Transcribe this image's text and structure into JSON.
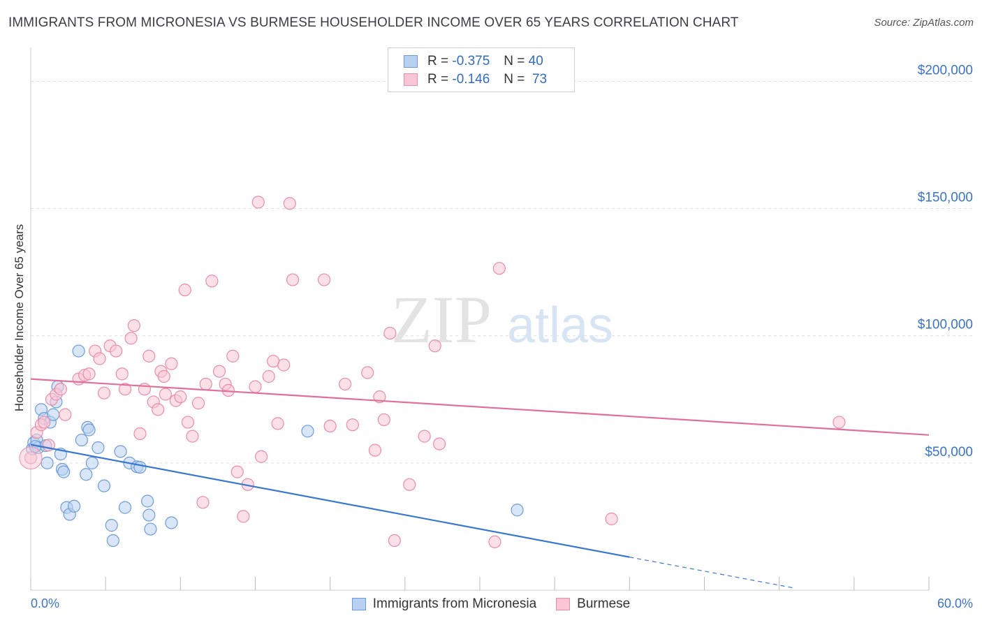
{
  "header": {
    "title": "IMMIGRANTS FROM MICRONESIA VS BURMESE HOUSEHOLDER INCOME OVER 65 YEARS CORRELATION CHART",
    "source": "Source: ZipAtlas.com"
  },
  "legend_top": {
    "rows": [
      {
        "r_label": "R =",
        "r_value": "-0.375",
        "n_label": "N =",
        "n_value": "40"
      },
      {
        "r_label": "R =",
        "r_value": "-0.146",
        "n_label": "N =",
        "n_value": "73"
      }
    ]
  },
  "legend_bottom": {
    "items": [
      {
        "label": "Immigrants from Micronesia"
      },
      {
        "label": "Burmese"
      }
    ]
  },
  "watermark": {
    "part1": "ZIP",
    "part2": "atlas"
  },
  "colors": {
    "blue_fill": "#b8d1f0",
    "blue_stroke": "#6e9bd8",
    "blue_line": "#3a78d0",
    "pink_fill": "#f9c6d6",
    "pink_stroke": "#e88ca8",
    "pink_line": "#e0709a",
    "tick_text": "#3a73c9",
    "grid": "#dddddd"
  },
  "chart_data": {
    "type": "scatter",
    "title": "IMMIGRANTS FROM MICRONESIA VS BURMESE HOUSEHOLDER INCOME OVER 65 YEARS CORRELATION CHART",
    "xlabel": "",
    "ylabel": "Householder Income Over 65 years",
    "xlim": [
      0,
      60
    ],
    "ylim": [
      0,
      210000
    ],
    "x_tick_labels": [
      {
        "value": 0,
        "label": "0.0%"
      },
      {
        "value": 60,
        "label": "60.0%"
      }
    ],
    "y_tick_labels": [
      {
        "value": 50000,
        "label": "$50,000"
      },
      {
        "value": 100000,
        "label": "$100,000"
      },
      {
        "value": 150000,
        "label": "$150,000"
      },
      {
        "value": 200000,
        "label": "$200,000"
      }
    ],
    "grid": true,
    "legend_position": "bottom",
    "series": [
      {
        "name": "Immigrants from Micronesia",
        "color": "#b8d1f0",
        "trend": {
          "x0": 0,
          "y0": 57200,
          "x1": 40,
          "y1": 13000,
          "dash_to_x": 51
        },
        "points": [
          [
            0.1,
            55500
          ],
          [
            0.2,
            58000
          ],
          [
            0.4,
            59000
          ],
          [
            0.5,
            56000
          ],
          [
            0.7,
            71000
          ],
          [
            0.9,
            67500
          ],
          [
            1.0,
            56800
          ],
          [
            1.1,
            50000
          ],
          [
            1.3,
            66000
          ],
          [
            1.5,
            69000
          ],
          [
            1.7,
            74000
          ],
          [
            1.8,
            80000
          ],
          [
            2.0,
            53500
          ],
          [
            2.1,
            47500
          ],
          [
            2.2,
            46500
          ],
          [
            2.4,
            32500
          ],
          [
            2.6,
            29800
          ],
          [
            3.2,
            94000
          ],
          [
            3.4,
            59000
          ],
          [
            3.7,
            45500
          ],
          [
            3.8,
            64000
          ],
          [
            3.9,
            63000
          ],
          [
            4.1,
            50000
          ],
          [
            4.5,
            56000
          ],
          [
            4.9,
            41000
          ],
          [
            5.4,
            25500
          ],
          [
            5.5,
            19500
          ],
          [
            6.0,
            54500
          ],
          [
            6.3,
            32500
          ],
          [
            6.6,
            50000
          ],
          [
            7.1,
            48500
          ],
          [
            7.3,
            48300
          ],
          [
            7.8,
            35000
          ],
          [
            7.9,
            29500
          ],
          [
            8.0,
            24000
          ],
          [
            9.4,
            26500
          ],
          [
            18.5,
            62500
          ],
          [
            32.5,
            31500
          ],
          [
            0.3,
            56500
          ],
          [
            2.9,
            33000
          ]
        ]
      },
      {
        "name": "Burmese",
        "color": "#f9c6d6",
        "trend": {
          "x0": 0,
          "y0": 83000,
          "x1": 60,
          "y1": 61000
        },
        "points": [
          [
            0.0,
            52000
          ],
          [
            0.4,
            62000
          ],
          [
            0.7,
            65000
          ],
          [
            0.9,
            66000
          ],
          [
            1.4,
            75000
          ],
          [
            1.7,
            77000
          ],
          [
            2.0,
            79000
          ],
          [
            2.3,
            69000
          ],
          [
            3.2,
            83000
          ],
          [
            3.6,
            84500
          ],
          [
            3.9,
            85000
          ],
          [
            4.3,
            94000
          ],
          [
            4.6,
            91000
          ],
          [
            4.9,
            77500
          ],
          [
            5.3,
            96000
          ],
          [
            5.7,
            94000
          ],
          [
            6.1,
            85000
          ],
          [
            6.3,
            79000
          ],
          [
            6.7,
            99000
          ],
          [
            6.9,
            104000
          ],
          [
            7.3,
            61500
          ],
          [
            7.6,
            79000
          ],
          [
            7.9,
            92000
          ],
          [
            8.2,
            74000
          ],
          [
            8.5,
            71000
          ],
          [
            8.7,
            86000
          ],
          [
            9.0,
            77000
          ],
          [
            9.4,
            89000
          ],
          [
            9.7,
            74500
          ],
          [
            10.0,
            76000
          ],
          [
            10.5,
            66000
          ],
          [
            10.8,
            60500
          ],
          [
            11.2,
            73500
          ],
          [
            11.5,
            34500
          ],
          [
            11.7,
            81000
          ],
          [
            12.1,
            121500
          ],
          [
            12.6,
            86000
          ],
          [
            13.0,
            81000
          ],
          [
            13.2,
            78500
          ],
          [
            13.5,
            92000
          ],
          [
            13.8,
            46500
          ],
          [
            14.2,
            29000
          ],
          [
            14.5,
            41500
          ],
          [
            15.0,
            80000
          ],
          [
            15.2,
            152500
          ],
          [
            15.4,
            52500
          ],
          [
            15.9,
            84000
          ],
          [
            16.2,
            90000
          ],
          [
            16.5,
            65500
          ],
          [
            16.9,
            88500
          ],
          [
            17.3,
            152000
          ],
          [
            17.5,
            122000
          ],
          [
            19.6,
            122000
          ],
          [
            20.0,
            64500
          ],
          [
            21.0,
            81000
          ],
          [
            21.5,
            65000
          ],
          [
            22.5,
            85500
          ],
          [
            23.0,
            55000
          ],
          [
            23.3,
            76000
          ],
          [
            23.6,
            67000
          ],
          [
            24.0,
            101000
          ],
          [
            24.3,
            19500
          ],
          [
            25.3,
            41500
          ],
          [
            26.3,
            60500
          ],
          [
            27.0,
            96000
          ],
          [
            27.3,
            57500
          ],
          [
            31.0,
            19000
          ],
          [
            31.3,
            126500
          ],
          [
            38.8,
            28000
          ],
          [
            54.0,
            66000
          ],
          [
            10.3,
            118000
          ],
          [
            8.9,
            84000
          ],
          [
            1.2,
            57000
          ]
        ]
      }
    ]
  }
}
